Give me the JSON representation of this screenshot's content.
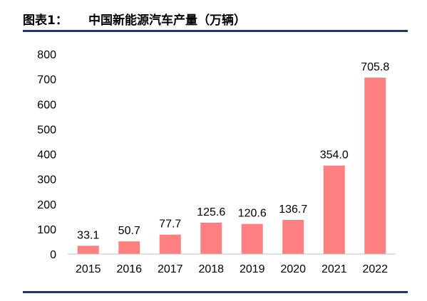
{
  "header": {
    "prefix": "图表1：",
    "title": "中国新能源汽车产量（万辆）"
  },
  "colors": {
    "bar": "#ff8080",
    "rule": "#1f3864",
    "axis": "#bfbfbf"
  },
  "chart_data": {
    "type": "bar",
    "title": "中国新能源汽车产量（万辆）",
    "categories": [
      "2015",
      "2016",
      "2017",
      "2018",
      "2019",
      "2020",
      "2021",
      "2022"
    ],
    "values": [
      33.1,
      50.7,
      77.7,
      125.6,
      120.6,
      136.7,
      354.0,
      705.8
    ],
    "value_labels": [
      "33.1",
      "50.7",
      "77.7",
      "125.6",
      "120.6",
      "136.7",
      "354.0",
      "705.8"
    ],
    "xlabel": "",
    "ylabel": "",
    "ylim": [
      0,
      800
    ],
    "yticks": [
      0,
      100,
      200,
      300,
      400,
      500,
      600,
      700,
      800
    ],
    "grid": false,
    "legend": "none"
  }
}
